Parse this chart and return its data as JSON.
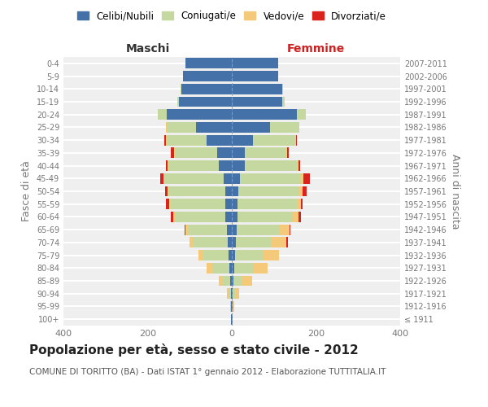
{
  "age_groups": [
    "100+",
    "95-99",
    "90-94",
    "85-89",
    "80-84",
    "75-79",
    "70-74",
    "65-69",
    "60-64",
    "55-59",
    "50-54",
    "45-49",
    "40-44",
    "35-39",
    "30-34",
    "25-29",
    "20-24",
    "15-19",
    "10-14",
    "5-9",
    "0-4"
  ],
  "birth_years": [
    "≤ 1911",
    "1912-1916",
    "1917-1921",
    "1922-1926",
    "1927-1931",
    "1932-1936",
    "1937-1941",
    "1942-1946",
    "1947-1951",
    "1952-1956",
    "1957-1961",
    "1962-1966",
    "1967-1971",
    "1972-1976",
    "1977-1981",
    "1982-1986",
    "1987-1991",
    "1992-1996",
    "1997-2001",
    "2002-2006",
    "2007-2011"
  ],
  "colors": {
    "celibi": "#4472a8",
    "coniugati": "#c5d8a0",
    "vedovi": "#f5c97a",
    "divorziati": "#d9231c"
  },
  "maschi": {
    "celibi": [
      1,
      1,
      2,
      3,
      5,
      8,
      10,
      12,
      15,
      15,
      15,
      20,
      30,
      35,
      60,
      85,
      155,
      125,
      120,
      115,
      110
    ],
    "coniugati": [
      0,
      1,
      5,
      18,
      40,
      60,
      80,
      90,
      120,
      130,
      135,
      140,
      120,
      100,
      95,
      70,
      20,
      5,
      2,
      0,
      0
    ],
    "vedovi": [
      0,
      1,
      5,
      10,
      15,
      12,
      10,
      8,
      5,
      3,
      3,
      3,
      3,
      2,
      2,
      1,
      1,
      0,
      0,
      0,
      0
    ],
    "divorziati": [
      0,
      0,
      0,
      0,
      0,
      0,
      0,
      2,
      5,
      8,
      5,
      8,
      3,
      8,
      3,
      0,
      0,
      0,
      0,
      0,
      0
    ]
  },
  "femmine": {
    "celibi": [
      1,
      2,
      2,
      3,
      5,
      8,
      10,
      12,
      14,
      14,
      15,
      20,
      30,
      30,
      50,
      90,
      155,
      120,
      120,
      110,
      110
    ],
    "coniugati": [
      0,
      0,
      5,
      20,
      45,
      65,
      85,
      100,
      130,
      140,
      145,
      145,
      125,
      100,
      100,
      70,
      20,
      5,
      2,
      0,
      0
    ],
    "vedovi": [
      1,
      3,
      10,
      25,
      35,
      40,
      35,
      25,
      15,
      10,
      8,
      5,
      3,
      2,
      2,
      1,
      1,
      0,
      0,
      0,
      0
    ],
    "divorziati": [
      0,
      0,
      0,
      0,
      0,
      0,
      3,
      3,
      5,
      5,
      10,
      15,
      5,
      3,
      3,
      0,
      0,
      0,
      0,
      0,
      0
    ]
  },
  "xlim": 400,
  "title": "Popolazione per età, sesso e stato civile - 2012",
  "subtitle": "COMUNE DI TORITTO (BA) - Dati ISTAT 1° gennaio 2012 - Elaborazione TUTTITALIA.IT",
  "xlabel_left": "Maschi",
  "xlabel_right": "Femmine",
  "ylabel_left": "Fasce di età",
  "ylabel_right": "Anni di nascita",
  "legend_labels": [
    "Celibi/Nubili",
    "Coniugati/e",
    "Vedovi/e",
    "Divorziati/e"
  ],
  "bg_color": "#ffffff",
  "plot_bg_color": "#efefef",
  "grid_color": "#ffffff",
  "label_color": "#777777",
  "maschi_label_color": "#333333",
  "femmine_label_color": "#cc2222"
}
